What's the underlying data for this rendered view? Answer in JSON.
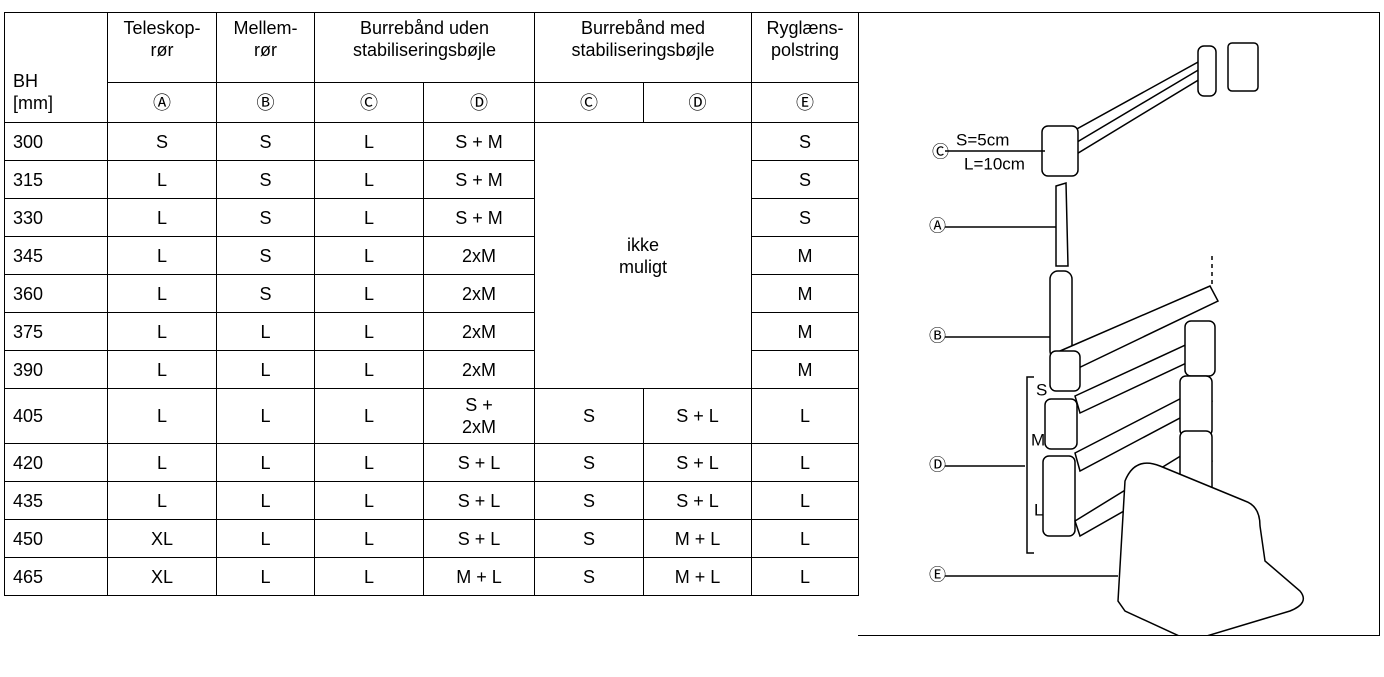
{
  "table": {
    "header": {
      "bh": "BH\n[mm]",
      "groups": [
        "Teleskop-\nrør",
        "Mellem-\nrør",
        "Burrebånd uden\nstabiliseringsbøjle",
        "Burrebånd med\nstabiliseringsbøjle",
        "Ryglæns-\npolstring"
      ],
      "markers": [
        "Ⓐ",
        "Ⓑ",
        "Ⓒ",
        "Ⓓ",
        "Ⓒ",
        "Ⓓ",
        "Ⓔ"
      ]
    },
    "not_possible": "ikke\nmuligt",
    "rows": [
      [
        "300",
        "S",
        "S",
        "L",
        "S + M",
        "S"
      ],
      [
        "315",
        "L",
        "S",
        "L",
        "S + M",
        "S"
      ],
      [
        "330",
        "L",
        "S",
        "L",
        "S + M",
        "S"
      ],
      [
        "345",
        "L",
        "S",
        "L",
        "2xM",
        "M"
      ],
      [
        "360",
        "L",
        "S",
        "L",
        "2xM",
        "M"
      ],
      [
        "375",
        "L",
        "L",
        "L",
        "2xM",
        "M"
      ],
      [
        "390",
        "L",
        "L",
        "L",
        "2xM",
        "M"
      ],
      [
        "405",
        "L",
        "L",
        "L",
        "S  +\n2xM",
        "S",
        "S + L",
        "L"
      ],
      [
        "420",
        "L",
        "L",
        "L",
        "S + L",
        "S",
        "S + L",
        "L"
      ],
      [
        "435",
        "L",
        "L",
        "L",
        "S + L",
        "S",
        "S + L",
        "L"
      ],
      [
        "450",
        "XL",
        "L",
        "L",
        "S + L",
        "S",
        "M + L",
        "L"
      ],
      [
        "465",
        "XL",
        "L",
        "L",
        "M + L",
        "S",
        "M + L",
        "L"
      ]
    ]
  },
  "diagram": {
    "strap_sizes": [
      "S=5cm",
      "L=10cm"
    ],
    "markers": {
      "c": "Ⓒ",
      "a": "Ⓐ",
      "b": "Ⓑ",
      "d": "Ⓓ",
      "e": "Ⓔ"
    },
    "sizes": [
      "S",
      "M",
      "L"
    ]
  }
}
